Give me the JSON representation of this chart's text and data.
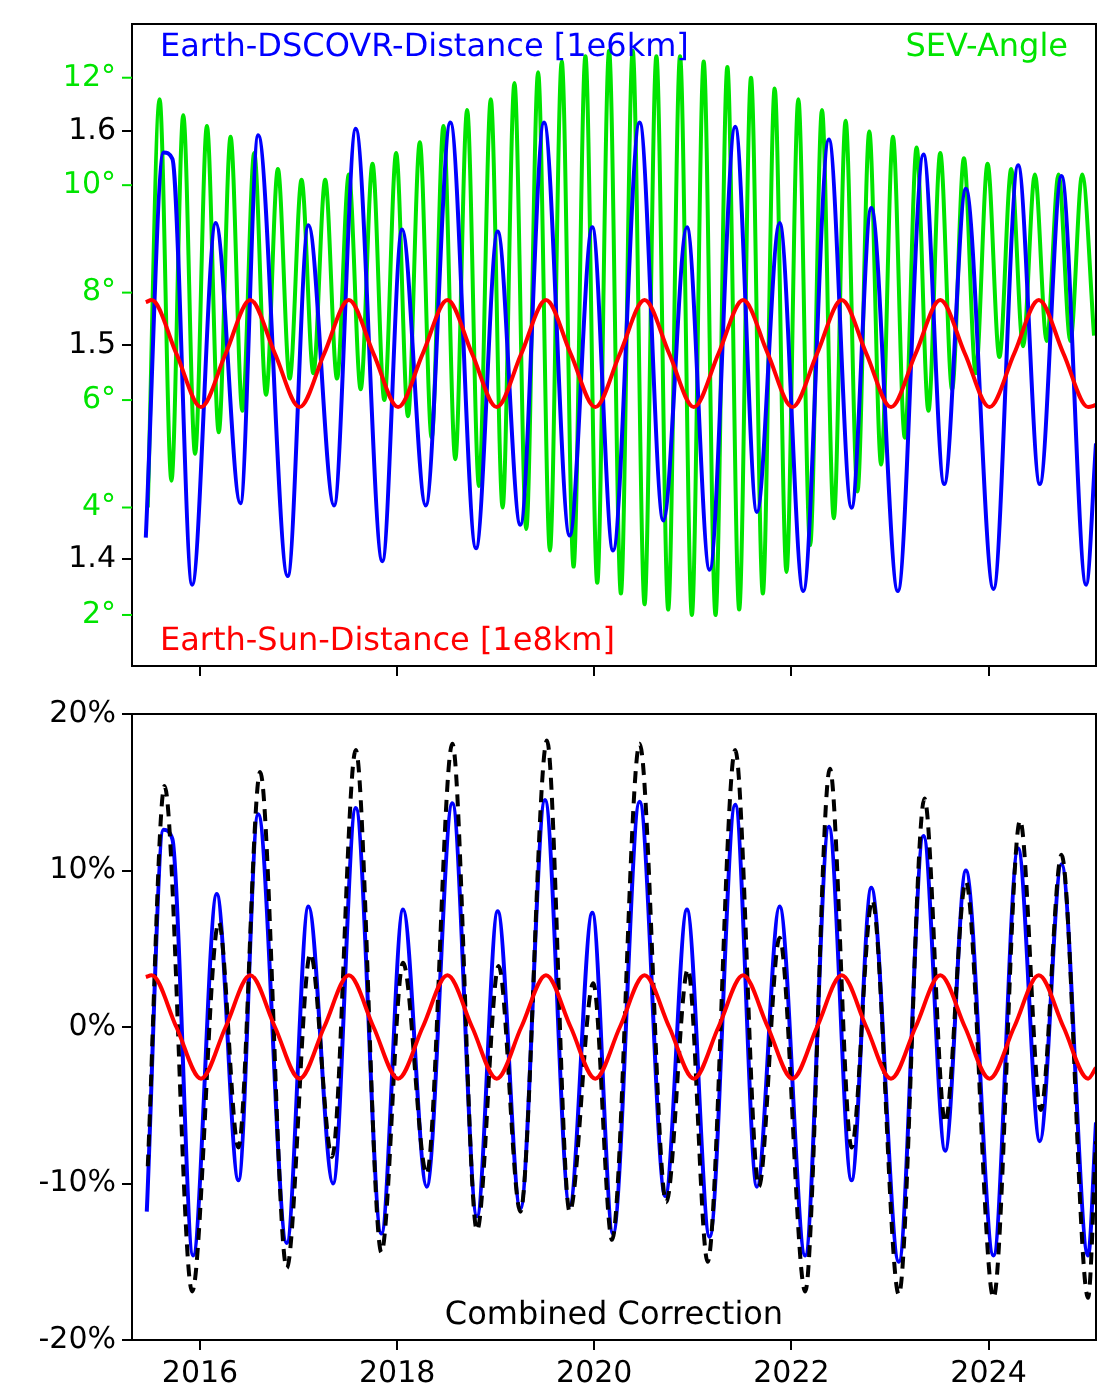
{
  "chart_data": [
    {
      "type": "line",
      "xlim": [
        2015.31,
        2025.09
      ],
      "xticks": [
        2016,
        2018,
        2020,
        2022,
        2024
      ],
      "ylim": [
        1.35,
        1.65
      ],
      "yticks": [
        1.4,
        1.5,
        1.6
      ],
      "y2lim": [
        1.05,
        13
      ],
      "y2ticks": [
        {
          "value": 2,
          "label": "2°"
        },
        {
          "value": 4,
          "label": "4°"
        },
        {
          "value": 6,
          "label": "6°"
        },
        {
          "value": 8,
          "label": "8°"
        },
        {
          "value": 10,
          "label": "10°"
        },
        {
          "value": 12,
          "label": "12°"
        }
      ],
      "tick_labels": "y",
      "grid": false,
      "legend": false,
      "series": [
        {
          "name": "SEV-Angle",
          "color": "#00e400",
          "axis": "y2",
          "x": [
            2015.47,
            2015.59,
            2015.71,
            2015.83,
            2015.95,
            2016.07,
            2016.19,
            2016.31,
            2016.43,
            2016.55,
            2016.67,
            2016.79,
            2016.91,
            2017.03,
            2017.15,
            2017.27,
            2017.39,
            2017.51,
            2017.63,
            2017.75,
            2017.87,
            2017.99,
            2018.11,
            2018.23,
            2018.35,
            2018.47,
            2018.59,
            2018.71,
            2018.83,
            2018.95,
            2019.07,
            2019.19,
            2019.31,
            2019.43,
            2019.55,
            2019.67,
            2019.79,
            2019.91,
            2020.03,
            2020.15,
            2020.27,
            2020.39,
            2020.51,
            2020.63,
            2020.75,
            2020.87,
            2020.99,
            2021.11,
            2021.23,
            2021.35,
            2021.47,
            2021.59,
            2021.71,
            2021.83,
            2021.95,
            2022.07,
            2022.19,
            2022.31,
            2022.43,
            2022.55,
            2022.67,
            2022.79,
            2022.91,
            2023.03,
            2023.15,
            2023.27,
            2023.39,
            2023.51,
            2023.63,
            2023.75,
            2023.87,
            2023.99,
            2024.11,
            2024.23,
            2024.35,
            2024.47,
            2024.59,
            2024.71,
            2024.83,
            2024.95,
            2025.07
          ],
          "values": [
            4.0,
            11.6,
            4.5,
            11.3,
            5.0,
            11.1,
            5.4,
            10.9,
            5.8,
            10.6,
            6.1,
            10.3,
            6.4,
            10.1,
            6.5,
            10.1,
            6.4,
            10.2,
            6.2,
            10.4,
            6.0,
            10.6,
            5.7,
            10.8,
            5.3,
            11.1,
            4.9,
            11.4,
            4.4,
            11.6,
            4.0,
            11.9,
            3.6,
            12.1,
            3.2,
            12.3,
            2.9,
            12.4,
            2.6,
            12.5,
            2.4,
            12.5,
            2.2,
            12.4,
            2.1,
            12.4,
            2.0,
            12.3,
            2.0,
            12.2,
            2.1,
            12.0,
            2.4,
            11.8,
            2.8,
            11.6,
            3.3,
            11.4,
            3.8,
            11.2,
            4.3,
            11.0,
            4.8,
            10.9,
            5.3,
            10.7,
            5.8,
            10.6,
            6.2,
            10.5,
            6.5,
            10.4,
            6.8,
            10.3,
            7.0,
            10.2,
            7.1,
            10.2,
            7.1,
            10.2,
            7.2
          ]
        },
        {
          "name": "Earth-DSCOVR-Distance [1e6km]",
          "color": "#0000ff",
          "x": [
            2015.45,
            2015.63,
            2015.72,
            2015.92,
            2016.16,
            2016.41,
            2016.59,
            2016.89,
            2017.1,
            2017.36,
            2017.58,
            2017.85,
            2018.05,
            2018.29,
            2018.54,
            2018.8,
            2019.02,
            2019.25,
            2019.49,
            2019.75,
            2019.98,
            2020.19,
            2020.46,
            2020.7,
            2020.94,
            2021.17,
            2021.43,
            2021.65,
            2021.88,
            2022.12,
            2022.38,
            2022.61,
            2022.81,
            2023.08,
            2023.34,
            2023.55,
            2023.77,
            2024.05,
            2024.3,
            2024.52,
            2024.74,
            2024.99,
            2025.09
          ],
          "values": [
            1.41,
            1.59,
            1.587,
            1.388,
            1.557,
            1.426,
            1.598,
            1.392,
            1.556,
            1.425,
            1.601,
            1.399,
            1.554,
            1.425,
            1.604,
            1.405,
            1.553,
            1.416,
            1.604,
            1.411,
            1.555,
            1.404,
            1.604,
            1.418,
            1.555,
            1.395,
            1.602,
            1.422,
            1.557,
            1.385,
            1.596,
            1.424,
            1.564,
            1.385,
            1.589,
            1.435,
            1.573,
            1.386,
            1.584,
            1.435,
            1.579,
            1.388,
            1.454
          ]
        },
        {
          "name": "Earth-Sun-Distance [1e8km]",
          "color": "#ff0000",
          "x": [
            2015.45,
            2015.51,
            2015.76,
            2016.01,
            2016.26,
            2016.51,
            2016.76,
            2017.01,
            2017.26,
            2017.51,
            2017.76,
            2018.01,
            2018.26,
            2018.51,
            2018.76,
            2019.01,
            2019.26,
            2019.51,
            2019.76,
            2020.01,
            2020.26,
            2020.51,
            2020.76,
            2021.01,
            2021.26,
            2021.51,
            2021.76,
            2022.01,
            2022.26,
            2022.51,
            2022.76,
            2023.01,
            2023.26,
            2023.51,
            2023.76,
            2024.01,
            2024.26,
            2024.51,
            2024.76,
            2025.01,
            2025.09
          ],
          "values": [
            1.52,
            1.521,
            1.496,
            1.471,
            1.496,
            1.521,
            1.496,
            1.471,
            1.496,
            1.521,
            1.496,
            1.471,
            1.496,
            1.521,
            1.496,
            1.471,
            1.496,
            1.521,
            1.496,
            1.471,
            1.496,
            1.521,
            1.496,
            1.471,
            1.496,
            1.521,
            1.496,
            1.471,
            1.496,
            1.521,
            1.496,
            1.471,
            1.496,
            1.521,
            1.496,
            1.471,
            1.496,
            1.521,
            1.496,
            1.471,
            1.472
          ]
        }
      ]
    },
    {
      "type": "line",
      "xlim": [
        2015.31,
        2025.09
      ],
      "xticks": [
        2016,
        2018,
        2020,
        2022,
        2024
      ],
      "ylim": [
        -20,
        20
      ],
      "yticks": [
        {
          "value": -20,
          "label": "-20%"
        },
        {
          "value": -10,
          "label": "-10%"
        },
        {
          "value": 0,
          "label": "0%"
        },
        {
          "value": 10,
          "label": "10%"
        },
        {
          "value": 20,
          "label": "20%"
        }
      ],
      "grid": false,
      "legend": false,
      "annotations": [
        "Combined Correction"
      ],
      "series": [
        {
          "color": "#0000ff",
          "x": [
            2015.46,
            2015.63,
            2015.72,
            2015.93,
            2016.17,
            2016.39,
            2016.59,
            2016.88,
            2017.1,
            2017.35,
            2017.58,
            2017.84,
            2018.06,
            2018.3,
            2018.56,
            2018.81,
            2019.02,
            2019.25,
            2019.5,
            2019.75,
            2019.98,
            2020.19,
            2020.46,
            2020.72,
            2020.94,
            2021.17,
            2021.43,
            2021.65,
            2021.88,
            2022.14,
            2022.38,
            2022.61,
            2022.81,
            2023.09,
            2023.34,
            2023.56,
            2023.77,
            2024.05,
            2024.3,
            2024.52,
            2024.74,
            2025.01,
            2025.09
          ],
          "values": [
            -11.8,
            12.6,
            12.0,
            -14.6,
            8.5,
            -9.8,
            13.6,
            -13.8,
            7.7,
            -10.0,
            14.0,
            -13.2,
            7.5,
            -10.2,
            14.3,
            -12.1,
            7.4,
            -11.6,
            14.5,
            -11.4,
            7.3,
            -13.2,
            14.4,
            -10.8,
            7.5,
            -13.4,
            14.2,
            -10.2,
            7.7,
            -14.6,
            12.8,
            -9.8,
            8.9,
            -15.0,
            12.2,
            -7.9,
            10.0,
            -14.6,
            11.4,
            -7.3,
            10.4,
            -14.6,
            -6.1
          ]
        },
        {
          "color": "#000000",
          "line_style": "dashed",
          "x": [
            2015.47,
            2015.64,
            2015.92,
            2016.19,
            2016.39,
            2016.61,
            2016.88,
            2017.12,
            2017.34,
            2017.58,
            2017.84,
            2018.06,
            2018.3,
            2018.56,
            2018.81,
            2019.03,
            2019.25,
            2019.52,
            2019.75,
            2019.99,
            2020.18,
            2020.46,
            2020.73,
            2020.95,
            2021.15,
            2021.43,
            2021.67,
            2021.88,
            2022.14,
            2022.39,
            2022.61,
            2022.82,
            2023.09,
            2023.35,
            2023.56,
            2023.77,
            2024.05,
            2024.32,
            2024.53,
            2024.74,
            2025.01,
            2025.09
          ],
          "values": [
            -8.9,
            15.4,
            -16.9,
            6.7,
            -7.7,
            16.3,
            -15.4,
            4.7,
            -8.3,
            17.7,
            -14.4,
            4.1,
            -9.4,
            18.1,
            -13.0,
            3.9,
            -11.8,
            18.3,
            -11.8,
            2.8,
            -13.6,
            18.1,
            -11.2,
            3.7,
            -15.0,
            17.7,
            -10.2,
            5.7,
            -16.9,
            16.5,
            -7.7,
            8.1,
            -17.1,
            14.6,
            -6.1,
            9.3,
            -17.3,
            13.2,
            -5.3,
            11.0,
            -17.3,
            -7.3
          ]
        },
        {
          "color": "#ff0000",
          "x": [
            2015.45,
            2015.51,
            2015.76,
            2016.01,
            2016.26,
            2016.51,
            2016.76,
            2017.01,
            2017.26,
            2017.51,
            2017.76,
            2018.01,
            2018.26,
            2018.51,
            2018.76,
            2019.01,
            2019.26,
            2019.51,
            2019.76,
            2020.01,
            2020.26,
            2020.51,
            2020.76,
            2021.01,
            2021.26,
            2021.51,
            2021.76,
            2022.01,
            2022.26,
            2022.51,
            2022.76,
            2023.01,
            2023.26,
            2023.51,
            2023.76,
            2024.01,
            2024.26,
            2024.51,
            2024.76,
            2025.01,
            2025.09
          ],
          "values": [
            3.2,
            3.3,
            0,
            -3.3,
            0,
            3.3,
            0,
            -3.3,
            0,
            3.3,
            0,
            -3.3,
            0,
            3.3,
            0,
            -3.3,
            0,
            3.3,
            0,
            -3.3,
            0,
            3.3,
            0,
            -3.3,
            0,
            3.3,
            0,
            -3.3,
            0,
            3.3,
            0,
            -3.3,
            0,
            3.3,
            0,
            -3.3,
            0,
            3.3,
            0,
            -3.3,
            -2.6
          ]
        }
      ]
    }
  ]
}
